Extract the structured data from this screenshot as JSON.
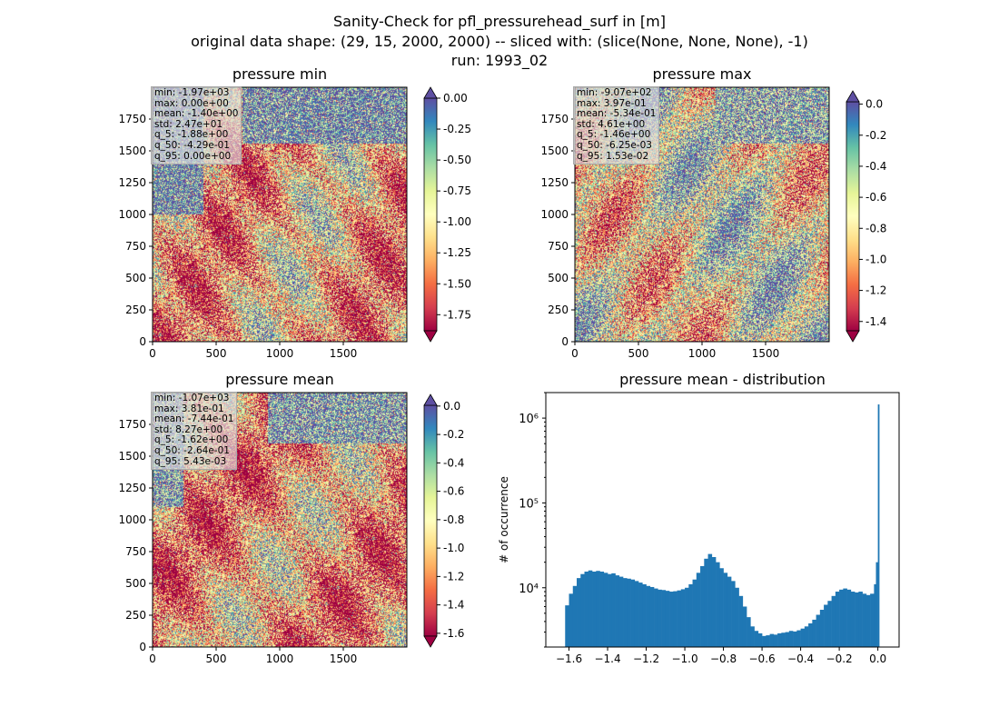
{
  "suptitle": [
    "Sanity-Check for pfl_pressurehead_surf in [m]",
    "original data shape: (29, 15, 2000, 2000) -- sliced with: (slice(None, None, None), -1)",
    "run: 1993_02"
  ],
  "colors": {
    "spectral_stops": [
      "#9e0142",
      "#d53e4f",
      "#f46d43",
      "#fdae61",
      "#fee08b",
      "#ffffbf",
      "#e6f598",
      "#abdda4",
      "#66c2a5",
      "#3288bd",
      "#5e4fa2"
    ],
    "hist_bar": "#1f77b4"
  },
  "panels": [
    {
      "id": "min",
      "title": "pressure min",
      "stats": [
        "min: -1.97e+03",
        "max: 0.00e+00",
        "mean: -1.40e+00",
        "std: 2.47e+01",
        "q_5: -1.88e+00",
        "q_50: -4.29e-01",
        "q_95: 0.00e+00"
      ],
      "xticks": [
        "0",
        "500",
        "1000",
        "1500"
      ],
      "yticks": [
        "0",
        "250",
        "500",
        "750",
        "1000",
        "1250",
        "1500",
        "1750"
      ],
      "colorbar": {
        "vmin": -1.88,
        "vmax": 0.0,
        "ticks": [
          "0.00",
          "-0.25",
          "-0.50",
          "-0.75",
          "-1.00",
          "-1.25",
          "-1.50",
          "-1.75"
        ],
        "extend": "both"
      }
    },
    {
      "id": "max",
      "title": "pressure max",
      "stats": [
        "min: -9.07e+02",
        "max: 3.97e-01",
        "mean: -5.34e-01",
        "std: 4.61e+00",
        "q_5: -1.46e+00",
        "q_50: -6.25e-03",
        "q_95: 1.53e-02"
      ],
      "xticks": [
        "0",
        "500",
        "1000",
        "1500"
      ],
      "yticks": [
        "0",
        "250",
        "500",
        "750",
        "1000",
        "1250",
        "1500",
        "1750"
      ],
      "colorbar": {
        "vmin": -1.46,
        "vmax": 0.0153,
        "ticks": [
          "0.0",
          "-0.2",
          "-0.4",
          "-0.6",
          "-0.8",
          "-1.0",
          "-1.2",
          "-1.4"
        ],
        "extend": "both"
      }
    },
    {
      "id": "mean",
      "title": "pressure mean",
      "stats": [
        "min: -1.07e+03",
        "max: 3.81e-01",
        "mean: -7.44e-01",
        "std: 8.27e+00",
        "q_5: -1.62e+00",
        "q_50: -2.64e-01",
        "q_95: 5.43e-03"
      ],
      "xticks": [
        "0",
        "500",
        "1000",
        "1500"
      ],
      "yticks": [
        "0",
        "250",
        "500",
        "750",
        "1000",
        "1250",
        "1500",
        "1750"
      ],
      "colorbar": {
        "vmin": -1.62,
        "vmax": 0.00543,
        "ticks": [
          "0.0",
          "-0.2",
          "-0.4",
          "-0.6",
          "-0.8",
          "-1.0",
          "-1.2",
          "-1.4",
          "-1.6"
        ],
        "extend": "both"
      }
    }
  ],
  "chart_data": [
    {
      "type": "heatmap",
      "title": "pressure min",
      "xlim": [
        0,
        2000
      ],
      "ylim": [
        0,
        2000
      ],
      "x_ticks": [
        0,
        500,
        1000,
        1500
      ],
      "y_ticks": [
        0,
        250,
        500,
        750,
        1000,
        1250,
        1500,
        1750
      ],
      "colormap": "Spectral",
      "color_range": [
        -1.88,
        0.0
      ],
      "colorbar_ticks": [
        0.0,
        -0.25,
        -0.5,
        -0.75,
        -1.0,
        -1.25,
        -1.5,
        -1.75
      ]
    },
    {
      "type": "heatmap",
      "title": "pressure max",
      "xlim": [
        0,
        2000
      ],
      "ylim": [
        0,
        2000
      ],
      "x_ticks": [
        0,
        500,
        1000,
        1500
      ],
      "y_ticks": [
        0,
        250,
        500,
        750,
        1000,
        1250,
        1500,
        1750
      ],
      "colormap": "Spectral",
      "color_range": [
        -1.46,
        0.0153
      ],
      "colorbar_ticks": [
        0.0,
        -0.2,
        -0.4,
        -0.6,
        -0.8,
        -1.0,
        -1.2,
        -1.4
      ]
    },
    {
      "type": "heatmap",
      "title": "pressure mean",
      "xlim": [
        0,
        2000
      ],
      "ylim": [
        0,
        2000
      ],
      "x_ticks": [
        0,
        500,
        1000,
        1500
      ],
      "y_ticks": [
        0,
        250,
        500,
        750,
        1000,
        1250,
        1500,
        1750
      ],
      "colormap": "Spectral",
      "color_range": [
        -1.62,
        0.00543
      ],
      "colorbar_ticks": [
        0.0,
        -0.2,
        -0.4,
        -0.6,
        -0.8,
        -1.0,
        -1.2,
        -1.4,
        -1.6
      ]
    },
    {
      "type": "bar",
      "title": "pressure mean - distribution",
      "xlabel": "",
      "ylabel": "# of occurrence",
      "yscale": "log",
      "xlim": [
        -1.72,
        0.11
      ],
      "ylim": [
        2000,
        2000000
      ],
      "x_ticks": [
        "−1.6",
        "−1.4",
        "−1.2",
        "−1.0",
        "−0.8",
        "−0.6",
        "−0.4",
        "−0.2",
        "0.0"
      ],
      "x_tick_values": [
        -1.6,
        -1.4,
        -1.2,
        -1.0,
        -0.8,
        -0.6,
        -0.4,
        -0.2,
        0.0
      ],
      "y_ticks": [
        "10⁴",
        "10⁵",
        "10⁶"
      ],
      "y_tick_values": [
        10000,
        100000,
        1000000
      ],
      "bins": [
        -1.62,
        0.00543
      ],
      "points": [
        [
          -1.62,
          6200
        ],
        [
          -1.6,
          8500
        ],
        [
          -1.58,
          10500
        ],
        [
          -1.56,
          13000
        ],
        [
          -1.54,
          14500
        ],
        [
          -1.52,
          15500
        ],
        [
          -1.5,
          16000
        ],
        [
          -1.48,
          15500
        ],
        [
          -1.46,
          15800
        ],
        [
          -1.44,
          15500
        ],
        [
          -1.42,
          15000
        ],
        [
          -1.4,
          14500
        ],
        [
          -1.38,
          14800
        ],
        [
          -1.36,
          14000
        ],
        [
          -1.34,
          13500
        ],
        [
          -1.32,
          13000
        ],
        [
          -1.3,
          12800
        ],
        [
          -1.28,
          12500
        ],
        [
          -1.26,
          12000
        ],
        [
          -1.24,
          11500
        ],
        [
          -1.22,
          11000
        ],
        [
          -1.2,
          10500
        ],
        [
          -1.18,
          10200
        ],
        [
          -1.16,
          9800
        ],
        [
          -1.14,
          9500
        ],
        [
          -1.12,
          9400
        ],
        [
          -1.1,
          9200
        ],
        [
          -1.08,
          9000
        ],
        [
          -1.06,
          9100
        ],
        [
          -1.04,
          9300
        ],
        [
          -1.02,
          9600
        ],
        [
          -1.0,
          10000
        ],
        [
          -0.98,
          11000
        ],
        [
          -0.96,
          12500
        ],
        [
          -0.94,
          15000
        ],
        [
          -0.92,
          18000
        ],
        [
          -0.9,
          22000
        ],
        [
          -0.88,
          25000
        ],
        [
          -0.86,
          23000
        ],
        [
          -0.84,
          20000
        ],
        [
          -0.82,
          17000
        ],
        [
          -0.8,
          15000
        ],
        [
          -0.78,
          13500
        ],
        [
          -0.76,
          12000
        ],
        [
          -0.74,
          10000
        ],
        [
          -0.72,
          8000
        ],
        [
          -0.7,
          6000
        ],
        [
          -0.68,
          4500
        ],
        [
          -0.66,
          3500
        ],
        [
          -0.64,
          3100
        ],
        [
          -0.62,
          2900
        ],
        [
          -0.6,
          2700
        ],
        [
          -0.58,
          2750
        ],
        [
          -0.56,
          2850
        ],
        [
          -0.54,
          2800
        ],
        [
          -0.52,
          2900
        ],
        [
          -0.5,
          2950
        ],
        [
          -0.48,
          3000
        ],
        [
          -0.46,
          3100
        ],
        [
          -0.44,
          3050
        ],
        [
          -0.42,
          3150
        ],
        [
          -0.4,
          3300
        ],
        [
          -0.38,
          3500
        ],
        [
          -0.36,
          3800
        ],
        [
          -0.34,
          4200
        ],
        [
          -0.32,
          4800
        ],
        [
          -0.3,
          5500
        ],
        [
          -0.28,
          6300
        ],
        [
          -0.26,
          7000
        ],
        [
          -0.24,
          8000
        ],
        [
          -0.22,
          9000
        ],
        [
          -0.2,
          9500
        ],
        [
          -0.18,
          9800
        ],
        [
          -0.16,
          9500
        ],
        [
          -0.14,
          9000
        ],
        [
          -0.12,
          8800
        ],
        [
          -0.1,
          9000
        ],
        [
          -0.08,
          8500
        ],
        [
          -0.06,
          8200
        ],
        [
          -0.04,
          8500
        ],
        [
          -0.02,
          11000
        ],
        [
          -0.01,
          20000
        ],
        [
          0.0,
          1450000
        ]
      ]
    }
  ]
}
